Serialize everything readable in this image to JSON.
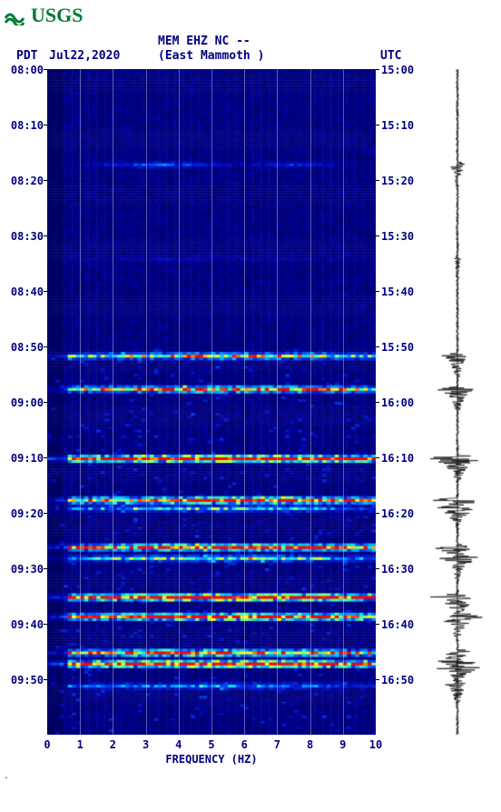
{
  "logo": {
    "text": "USGS",
    "color": "#007a33"
  },
  "header": {
    "left_label": "PDT",
    "date": "Jul22,2020",
    "station": "MEM EHZ NC --",
    "location": "(East Mammoth )",
    "right_label": "UTC"
  },
  "chart": {
    "type": "spectrogram",
    "bg_plot": "#0a0a5a",
    "colormap": [
      "#000060",
      "#0000a0",
      "#0020d0",
      "#0060ff",
      "#00c0ff",
      "#40ffc0",
      "#c0ff40",
      "#ffff00",
      "#ff8000",
      "#ff0000"
    ],
    "x_axis": {
      "label": "FREQUENCY (HZ)",
      "min": 0,
      "max": 10,
      "ticks": [
        0,
        1,
        2,
        3,
        4,
        5,
        6,
        7,
        8,
        9,
        10
      ]
    },
    "y_left": {
      "ticks": [
        "08:00",
        "08:10",
        "08:20",
        "08:30",
        "08:40",
        "08:50",
        "09:00",
        "09:10",
        "09:20",
        "09:30",
        "09:40",
        "09:50"
      ]
    },
    "y_right": {
      "ticks": [
        "15:00",
        "15:10",
        "15:20",
        "15:30",
        "15:40",
        "15:50",
        "16:00",
        "16:10",
        "16:20",
        "16:30",
        "16:40",
        "16:50"
      ]
    },
    "grid_x": [
      1,
      2,
      3,
      4,
      5,
      6,
      7,
      8,
      9
    ],
    "n_time_bins": 240,
    "n_freq_bins": 80,
    "events": [
      {
        "t": 34,
        "strength": 0.25,
        "width": 0.18
      },
      {
        "t": 68,
        "strength": 0.06,
        "width": 0.3
      },
      {
        "t": 103,
        "strength": 0.55,
        "width": 0.6
      },
      {
        "t": 115,
        "strength": 0.65,
        "width": 0.7
      },
      {
        "t": 140,
        "strength": 0.92,
        "width": 0.85
      },
      {
        "t": 155,
        "strength": 0.75,
        "width": 0.8
      },
      {
        "t": 158,
        "strength": 0.35,
        "width": 0.5
      },
      {
        "t": 172,
        "strength": 0.78,
        "width": 0.8
      },
      {
        "t": 176,
        "strength": 0.45,
        "width": 0.5
      },
      {
        "t": 190,
        "strength": 0.88,
        "width": 0.9
      },
      {
        "t": 197,
        "strength": 0.8,
        "width": 0.85
      },
      {
        "t": 210,
        "strength": 0.7,
        "width": 0.75
      },
      {
        "t": 214,
        "strength": 0.9,
        "width": 0.9
      },
      {
        "t": 222,
        "strength": 0.3,
        "width": 0.4
      }
    ],
    "noise_floor": 0.08,
    "low_freq_cutoff": 0.05
  },
  "seismogram": {
    "line_color": "#000000",
    "bg": "#ffffff",
    "base_amp": 0.04,
    "events_amp_scale": 40
  },
  "label_color": "#000080",
  "label_fontsize": 12
}
